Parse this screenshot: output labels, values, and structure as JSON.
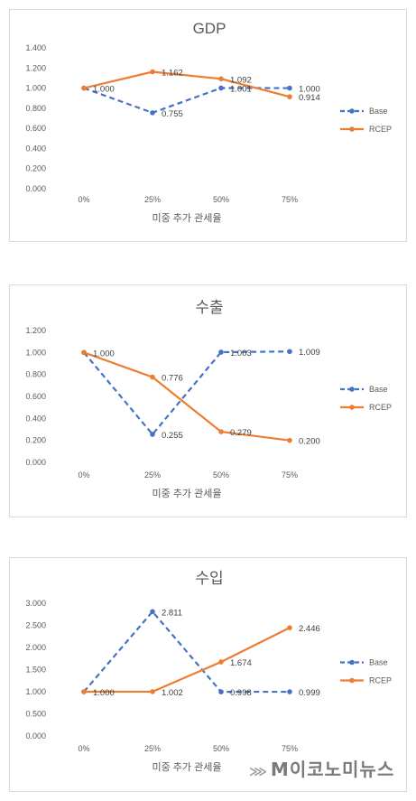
{
  "chart_data": [
    {
      "type": "line",
      "title": "GDP",
      "xlabel": "미중 추가 관세율",
      "ylabel": "",
      "categories": [
        "0%",
        "25%",
        "50%",
        "75%"
      ],
      "ylim": [
        0,
        1.4
      ],
      "yticks": [
        "0.000",
        "0.200",
        "0.400",
        "0.600",
        "0.800",
        "1.000",
        "1.200",
        "1.400"
      ],
      "series": [
        {
          "name": "Base",
          "values": [
            1.0,
            0.755,
            1.001,
            1.0
          ],
          "labels": [
            "",
            "0.755",
            "1.001",
            "1.000"
          ],
          "color": "#4472c4",
          "dash": true
        },
        {
          "name": "RCEP",
          "values": [
            1.0,
            1.162,
            1.092,
            0.914
          ],
          "labels": [
            "1.000",
            "1.162",
            "1.092",
            "0.914"
          ],
          "color": "#ed7d31",
          "dash": false
        }
      ],
      "legend": "right"
    },
    {
      "type": "line",
      "title": "수출",
      "xlabel": "미중 추가 관세율",
      "ylabel": "",
      "categories": [
        "0%",
        "25%",
        "50%",
        "75%"
      ],
      "ylim": [
        0,
        1.2
      ],
      "yticks": [
        "0.000",
        "0.200",
        "0.400",
        "0.600",
        "0.800",
        "1.000",
        "1.200"
      ],
      "series": [
        {
          "name": "Base",
          "values": [
            1.0,
            0.255,
            1.003,
            1.009
          ],
          "labels": [
            "",
            "0.255",
            "1.003",
            "1.009"
          ],
          "color": "#4472c4",
          "dash": true
        },
        {
          "name": "RCEP",
          "values": [
            1.0,
            0.776,
            0.279,
            0.2
          ],
          "labels": [
            "1.000",
            "0.776",
            "0.279",
            "0.200"
          ],
          "color": "#ed7d31",
          "dash": false
        }
      ],
      "legend": "right"
    },
    {
      "type": "line",
      "title": "수입",
      "xlabel": "미중 추가 관세율",
      "ylabel": "",
      "categories": [
        "0%",
        "25%",
        "50%",
        "75%"
      ],
      "ylim": [
        0,
        3.0
      ],
      "yticks": [
        "0.000",
        "0.500",
        "1.000",
        "1.500",
        "2.000",
        "2.500",
        "3.000"
      ],
      "series": [
        {
          "name": "Base",
          "values": [
            1.0,
            2.811,
            0.998,
            0.999
          ],
          "labels": [
            "",
            "2.811",
            "0.998",
            "0.999"
          ],
          "color": "#4472c4",
          "dash": true
        },
        {
          "name": "RCEP",
          "values": [
            1.0,
            1.002,
            1.674,
            2.446
          ],
          "labels": [
            "1.000",
            "1.002",
            "1.674",
            "2.446"
          ],
          "color": "#ed7d31",
          "dash": false
        }
      ],
      "legend": "right"
    }
  ],
  "watermark": {
    "icon": "economy-news-logo-icon",
    "text": "M이코노미뉴스"
  }
}
